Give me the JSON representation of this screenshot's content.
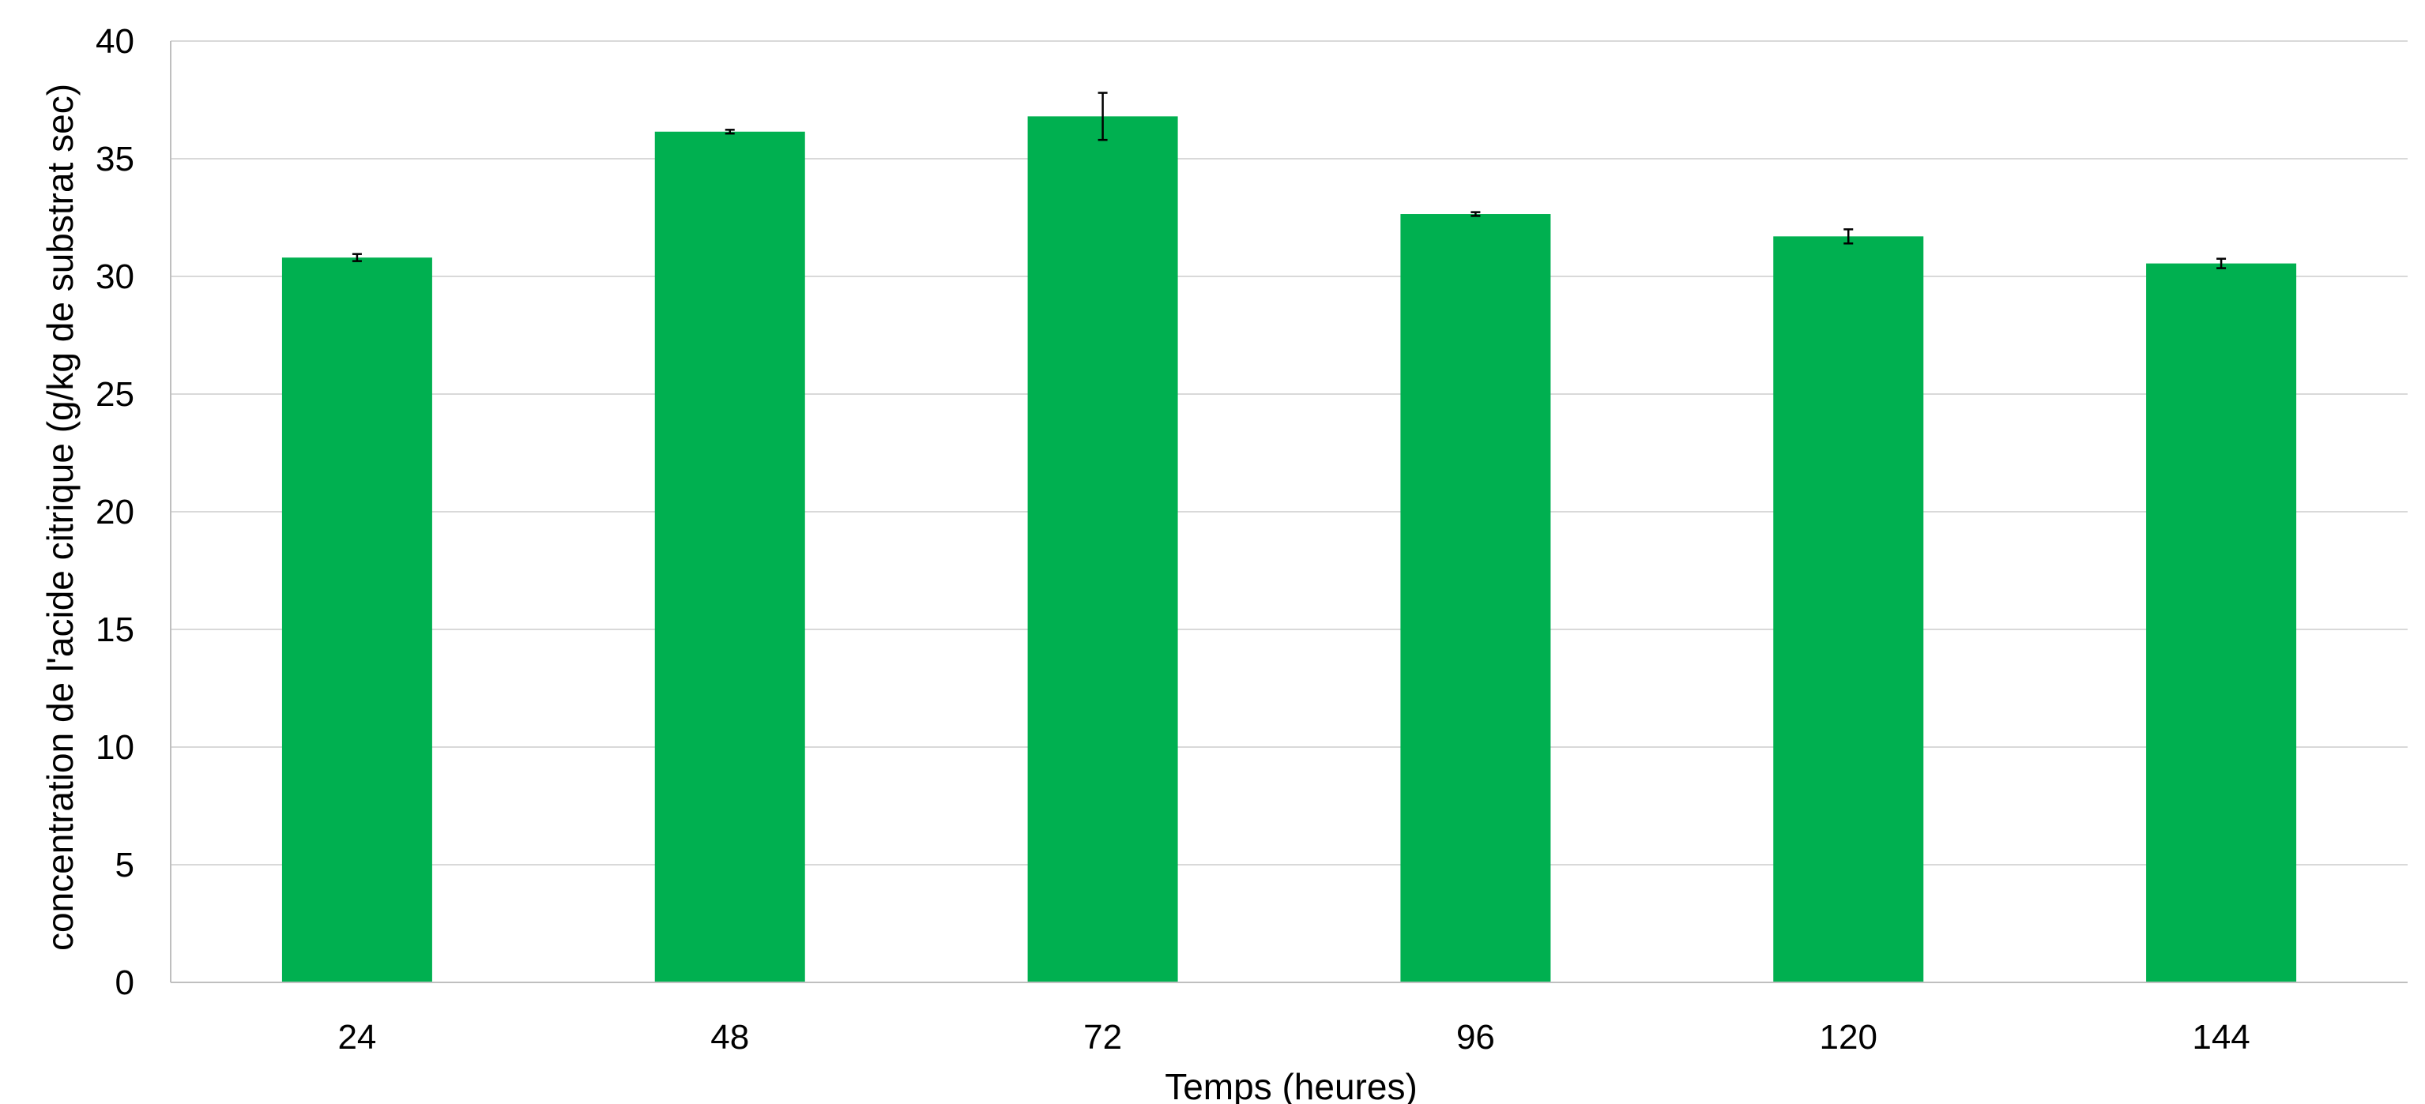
{
  "chart_data": {
    "type": "bar",
    "title": "",
    "xlabel": "Temps (heures)",
    "ylabel": "concentration de l'acide citrique (g/kg de substrat sec)",
    "categories": [
      "24",
      "48",
      "72",
      "96",
      "120",
      "144"
    ],
    "values": [
      30.8,
      36.15,
      36.8,
      32.65,
      31.7,
      30.55
    ],
    "error": [
      0.15,
      0.08,
      1.0,
      0.08,
      0.3,
      0.2
    ],
    "ylim": [
      0,
      40
    ],
    "yticks": [
      "0",
      "5",
      "10",
      "15",
      "20",
      "25",
      "30",
      "35",
      "40"
    ],
    "grid": true,
    "legend": "none",
    "colors": {
      "bar": "#00B050",
      "grid": "#D9D9D9",
      "axis": "#BFBFBF",
      "error": "#000000"
    }
  }
}
